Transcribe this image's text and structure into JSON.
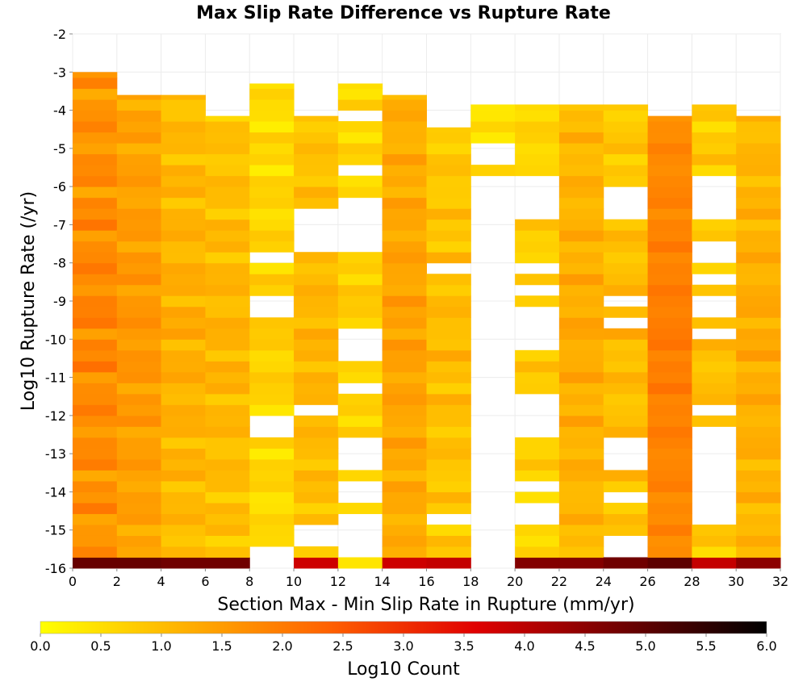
{
  "chart_data": {
    "type": "heatmap",
    "title": "Max Slip Rate Difference vs Rupture Rate",
    "xlabel": "Section Max - Min Slip Rate in Rupture (mm/yr)",
    "ylabel": "Log10 Rupture Rate (/yr)",
    "colorbar_label": "Log10 Count",
    "xlim": [
      0,
      32
    ],
    "ylim": [
      -16,
      -2
    ],
    "x_ticks": [
      "0",
      "2",
      "4",
      "6",
      "8",
      "10",
      "12",
      "14",
      "16",
      "18",
      "20",
      "22",
      "24",
      "26",
      "28",
      "30",
      "32"
    ],
    "y_ticks": [
      "-2",
      "-3",
      "-4",
      "-5",
      "-6",
      "-7",
      "-8",
      "-9",
      "-10",
      "-11",
      "-12",
      "-13",
      "-14",
      "-15",
      "-16"
    ],
    "colorbar_ticks": [
      "0.0",
      "0.5",
      "1.0",
      "1.5",
      "2.0",
      "2.5",
      "3.0",
      "3.5",
      "4.0",
      "4.5",
      "5.0",
      "5.5",
      "6.0"
    ],
    "colorbar_range": [
      0,
      6
    ],
    "colormap": [
      "#ffff00",
      "#ffb000",
      "#ff6000",
      "#e00000",
      "#700000",
      "#000000"
    ],
    "x_bin_width": 2,
    "y_bin_height": 0.2857,
    "y_bin_start": -16,
    "row_bins": 49,
    "columns": [
      {
        "x": 1,
        "top": -3.0,
        "base": 1.6,
        "amp": 0.45,
        "holes": [],
        "bottom": 4.9
      },
      {
        "x": 3,
        "top": -3.6,
        "base": 1.35,
        "amp": 0.3,
        "holes": [],
        "bottom": 4.9
      },
      {
        "x": 5,
        "top": -3.6,
        "base": 1.0,
        "amp": 0.35,
        "holes": [],
        "bottom": 4.8
      },
      {
        "x": 7,
        "top": -4.15,
        "base": 0.9,
        "amp": 0.35,
        "holes": [
          [
            -15.0,
            -14.8
          ]
        ],
        "bottom": 4.8
      },
      {
        "x": 9,
        "top": -3.3,
        "base": 0.5,
        "amp": 0.35,
        "holes": [
          [
            -7.6,
            -8.1
          ],
          [
            -8.9,
            -9.4
          ],
          [
            -10.2,
            -10.4
          ],
          [
            -11.9,
            -12.5
          ],
          [
            -14.2,
            -14.4
          ],
          [
            -15.3,
            -16.0
          ]
        ],
        "bottom": 3.6
      },
      {
        "x": 11,
        "top": -4.15,
        "base": 0.9,
        "amp": 0.3,
        "holes": [
          [
            -6.6,
            -7.6
          ],
          [
            -8.2,
            -8.4
          ],
          [
            -11.7,
            -11.9
          ],
          [
            -15.0,
            -15.3
          ]
        ],
        "bottom": 3.8
      },
      {
        "x": 13,
        "top": -3.3,
        "base": 0.55,
        "amp": 0.3,
        "holes": [
          [
            -3.6,
            -3.8
          ],
          [
            -4.1,
            -4.3
          ],
          [
            -5.5,
            -5.8
          ],
          [
            -6.3,
            -6.8
          ],
          [
            -7.0,
            -7.6
          ],
          [
            -9.6,
            -10.5
          ],
          [
            -11.1,
            -11.4
          ],
          [
            -12.5,
            -13.5
          ],
          [
            -13.8,
            -14.3
          ],
          [
            -14.6,
            -15.6
          ]
        ],
        "bottom": 0.4
      },
      {
        "x": 15,
        "top": -3.6,
        "base": 1.2,
        "amp": 0.3,
        "holes": [],
        "bottom": 3.8
      },
      {
        "x": 17,
        "top": -4.45,
        "base": 0.8,
        "amp": 0.35,
        "holes": [
          [
            -8.1,
            -8.4
          ],
          [
            -12.8,
            -13.0
          ],
          [
            -14.7,
            -14.9
          ]
        ],
        "bottom": 3.9
      },
      {
        "x": 19,
        "top": -3.85,
        "base": 0.4,
        "amp": 0.25,
        "holes": [
          [
            -5.0,
            -5.3
          ],
          [
            -5.6,
            -15.9
          ]
        ],
        "bottom": 2.9
      },
      {
        "x": 21,
        "top": -3.85,
        "base": 0.6,
        "amp": 0.3,
        "holes": [
          [
            -5.6,
            -6.8
          ],
          [
            -8.0,
            -8.3
          ],
          [
            -8.6,
            -8.8
          ],
          [
            -9.2,
            -10.2
          ],
          [
            -10.5,
            -10.7
          ],
          [
            -11.4,
            -12.7
          ],
          [
            -13.6,
            -13.9
          ],
          [
            -14.2,
            -14.8
          ]
        ],
        "bottom": 4.6
      },
      {
        "x": 23,
        "top": -3.85,
        "base": 1.05,
        "amp": 0.3,
        "holes": [],
        "bottom": 4.6
      },
      {
        "x": 25,
        "top": -3.85,
        "base": 0.8,
        "amp": 0.35,
        "holes": [
          [
            -6.0,
            -7.0
          ],
          [
            -8.8,
            -9.1
          ],
          [
            -9.4,
            -9.6
          ],
          [
            -12.7,
            -13.4
          ],
          [
            -14.0,
            -14.2
          ],
          [
            -15.2,
            -15.7
          ]
        ],
        "bottom": 4.8
      },
      {
        "x": 27,
        "top": -4.15,
        "base": 1.75,
        "amp": 0.2,
        "holes": [],
        "bottom": 5.0
      },
      {
        "x": 29,
        "top": -3.85,
        "base": 0.75,
        "amp": 0.35,
        "holes": [
          [
            -5.6,
            -7.0
          ],
          [
            -7.3,
            -7.9
          ],
          [
            -8.3,
            -8.6
          ],
          [
            -8.9,
            -9.3
          ],
          [
            -9.8,
            -10.0
          ],
          [
            -11.6,
            -11.9
          ],
          [
            -12.2,
            -15.0
          ],
          [
            -15.6,
            -15.8
          ]
        ],
        "bottom": 3.9
      },
      {
        "x": 31,
        "top": -4.15,
        "base": 1.05,
        "amp": 0.3,
        "holes": [],
        "bottom": 4.5
      }
    ]
  }
}
